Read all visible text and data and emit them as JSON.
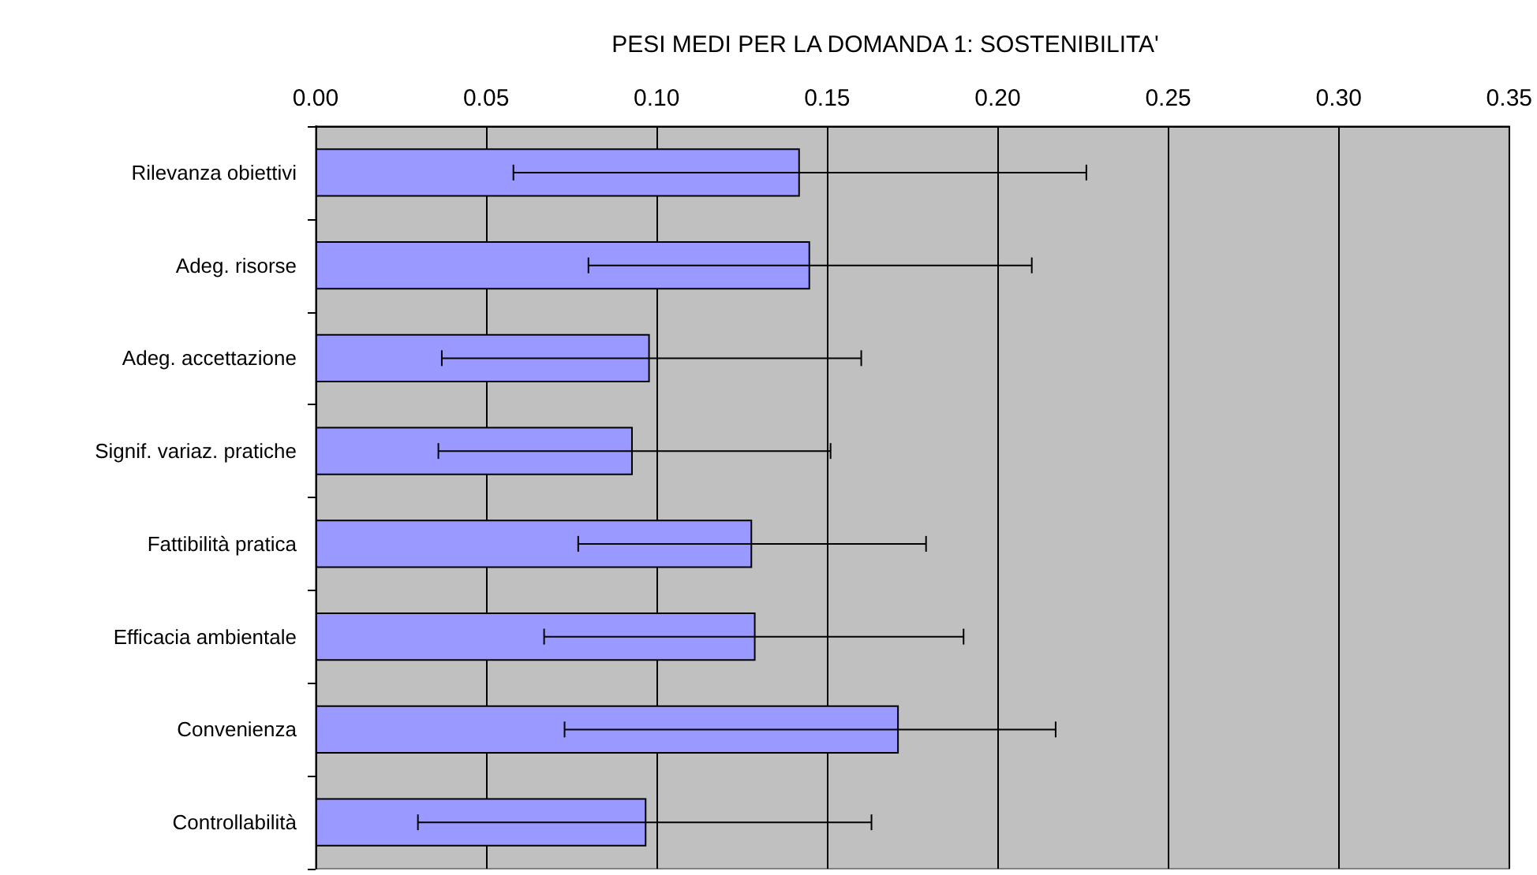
{
  "chart_data": {
    "type": "bar",
    "orientation": "horizontal",
    "title": "PESI MEDI PER LA DOMANDA 1: SOSTENIBILITA'",
    "categories": [
      "Rilevanza obiettivi",
      "Adeg. risorse",
      "Adeg. accettazione",
      "Signif. variaz. pratiche",
      "Fattibilità pratica",
      "Efficacia ambientale",
      "Convenienza",
      "Controllabilità"
    ],
    "values": [
      0.142,
      0.145,
      0.098,
      0.093,
      0.128,
      0.129,
      0.171,
      0.097
    ],
    "errors": [
      [
        0.058,
        0.226
      ],
      [
        0.08,
        0.21
      ],
      [
        0.037,
        0.16
      ],
      [
        0.036,
        0.151
      ],
      [
        0.077,
        0.179
      ],
      [
        0.067,
        0.19
      ],
      [
        0.073,
        0.217
      ],
      [
        0.03,
        0.163
      ]
    ],
    "color": "#9999ff",
    "xlim": [
      0,
      0.35
    ],
    "xticks": [
      {
        "value": 0,
        "label": "0.00"
      },
      {
        "value": 0.05,
        "label": "0.05"
      },
      {
        "value": 0.1,
        "label": "0.10"
      },
      {
        "value": 0.15,
        "label": "0.15"
      },
      {
        "value": 0.2,
        "label": "0.20"
      },
      {
        "value": 0.25,
        "label": "0.25"
      },
      {
        "value": 0.3,
        "label": "0.30"
      },
      {
        "value": 0.35,
        "label": "0.35"
      }
    ],
    "grid": "x"
  }
}
